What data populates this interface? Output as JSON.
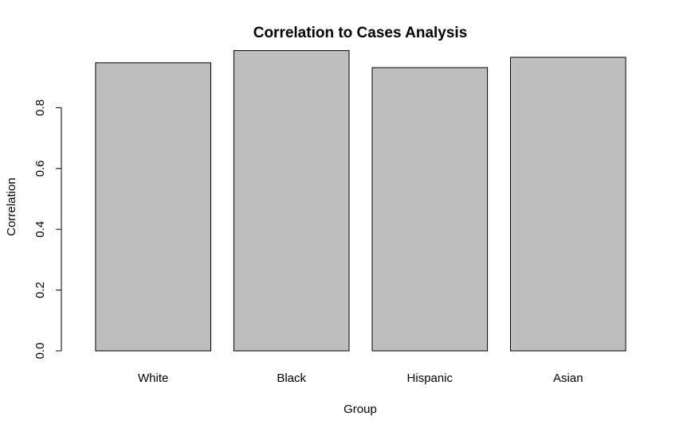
{
  "chart_data": {
    "type": "bar",
    "title": "Correlation to Cases Analysis",
    "xlabel": "Group",
    "ylabel": "Correlation",
    "categories": [
      "White",
      "Black",
      "Hispanic",
      "Asian"
    ],
    "values": [
      0.948,
      0.988,
      0.932,
      0.966
    ],
    "ylim": [
      0,
      1.0
    ],
    "yticks": [
      0.0,
      0.2,
      0.4,
      0.6,
      0.8
    ],
    "ytick_labels": [
      "0.0",
      "0.2",
      "0.4",
      "0.6",
      "0.8"
    ],
    "bar_color": "#bebebe",
    "border_color": "#000000",
    "grid": false,
    "legend": "none"
  }
}
